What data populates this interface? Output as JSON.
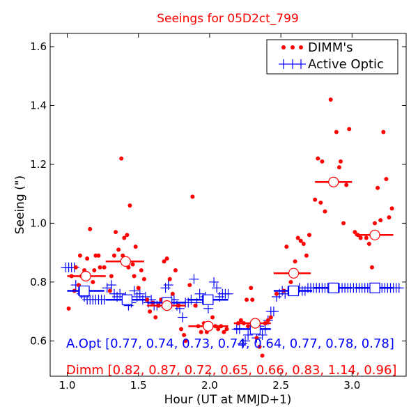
{
  "chart_data": {
    "type": "scatter",
    "title": "Seeings for 05D2ct_799",
    "xlabel": "Hour (UT at MMJD+1)",
    "ylabel": "Seeing (\")",
    "xlim": [
      0.88,
      3.38
    ],
    "ylim": [
      0.48,
      1.645
    ],
    "xticks": [
      "1.0",
      "1.5",
      "2.0",
      "2.5",
      "3.0"
    ],
    "xtick_values": [
      1.0,
      1.5,
      2.0,
      2.5,
      3.0
    ],
    "yticks": [
      "0.6",
      "0.8",
      "1.0",
      "1.2",
      "1.4",
      "1.6"
    ],
    "ytick_values": [
      0.6,
      0.8,
      1.0,
      1.2,
      1.4,
      1.6
    ],
    "grid": false,
    "legend_position": "top-right",
    "colors": {
      "dimm": "#ff0000",
      "aopt": "#0000ff"
    },
    "series": [
      {
        "name": "DIMM's",
        "marker": "dot",
        "color": "#ff0000",
        "points": [
          [
            1.01,
            0.71
          ],
          [
            1.03,
            0.82
          ],
          [
            1.05,
            0.77
          ],
          [
            1.06,
            0.85
          ],
          [
            1.08,
            0.79
          ],
          [
            1.09,
            0.89
          ],
          [
            1.1,
            0.82
          ],
          [
            1.12,
            0.84
          ],
          [
            1.13,
            0.78
          ],
          [
            1.14,
            0.88
          ],
          [
            1.16,
            0.98
          ],
          [
            1.18,
            0.8
          ],
          [
            1.19,
            0.84
          ],
          [
            1.2,
            0.89
          ],
          [
            1.22,
            0.89
          ],
          [
            1.23,
            0.85
          ],
          [
            1.26,
            0.85
          ],
          [
            1.3,
            0.77
          ],
          [
            1.31,
            0.82
          ],
          [
            1.33,
            0.89
          ],
          [
            1.34,
            0.97
          ],
          [
            1.36,
            0.91
          ],
          [
            1.38,
            1.22
          ],
          [
            1.39,
            0.89
          ],
          [
            1.4,
            0.95
          ],
          [
            1.42,
            0.96
          ],
          [
            1.43,
            0.85
          ],
          [
            1.44,
            1.06
          ],
          [
            1.46,
            0.86
          ],
          [
            1.47,
            0.82
          ],
          [
            1.48,
            0.92
          ],
          [
            1.5,
            0.78
          ],
          [
            1.52,
            0.84
          ],
          [
            1.54,
            0.81
          ],
          [
            1.56,
            0.74
          ],
          [
            1.58,
            0.7
          ],
          [
            1.6,
            0.73
          ],
          [
            1.62,
            0.68
          ],
          [
            1.64,
            0.72
          ],
          [
            1.66,
            0.74
          ],
          [
            1.68,
            0.87
          ],
          [
            1.7,
            0.88
          ],
          [
            1.72,
            0.81
          ],
          [
            1.74,
            0.76
          ],
          [
            1.76,
            0.84
          ],
          [
            1.78,
            0.72
          ],
          [
            1.8,
            0.64
          ],
          [
            1.82,
            0.62
          ],
          [
            1.83,
            0.6
          ],
          [
            1.86,
            0.79
          ],
          [
            1.88,
            1.09
          ],
          [
            1.9,
            0.72
          ],
          [
            1.92,
            0.65
          ],
          [
            1.94,
            0.63
          ],
          [
            1.96,
            0.66
          ],
          [
            1.98,
            0.63
          ],
          [
            2.0,
            0.64
          ],
          [
            2.02,
            0.68
          ],
          [
            2.04,
            0.65
          ],
          [
            2.06,
            0.64
          ],
          [
            2.08,
            0.65
          ],
          [
            2.1,
            0.63
          ],
          [
            2.12,
            0.64
          ],
          [
            2.2,
            0.66
          ],
          [
            2.22,
            0.67
          ],
          [
            2.24,
            0.66
          ],
          [
            2.26,
            0.74
          ],
          [
            2.27,
            0.65
          ],
          [
            2.29,
            0.78
          ],
          [
            2.3,
            0.74
          ],
          [
            2.31,
            0.64
          ],
          [
            2.33,
            0.61
          ],
          [
            2.35,
            0.58
          ],
          [
            2.37,
            0.55
          ],
          [
            2.39,
            0.66
          ],
          [
            2.41,
            0.67
          ],
          [
            2.43,
            0.68
          ],
          [
            2.47,
            0.76
          ],
          [
            2.52,
            0.77
          ],
          [
            2.54,
            0.92
          ],
          [
            2.57,
            0.8
          ],
          [
            2.6,
            0.87
          ],
          [
            2.62,
            0.95
          ],
          [
            2.64,
            0.94
          ],
          [
            2.66,
            0.93
          ],
          [
            2.68,
            0.89
          ],
          [
            2.7,
            0.96
          ],
          [
            2.74,
            1.08
          ],
          [
            2.76,
            1.22
          ],
          [
            2.78,
            1.07
          ],
          [
            2.79,
            1.21
          ],
          [
            2.81,
            1.04
          ],
          [
            2.85,
            1.42
          ],
          [
            2.88,
            1.15
          ],
          [
            2.89,
            1.31
          ],
          [
            2.91,
            1.19
          ],
          [
            2.92,
            1.21
          ],
          [
            2.94,
            1.0
          ],
          [
            2.96,
            1.13
          ],
          [
            2.98,
            1.32
          ],
          [
            3.02,
            0.97
          ],
          [
            3.04,
            0.96
          ],
          [
            3.06,
            0.95
          ],
          [
            3.1,
            0.95
          ],
          [
            3.12,
            0.93
          ],
          [
            3.14,
            0.85
          ],
          [
            3.16,
            1.0
          ],
          [
            3.18,
            1.12
          ],
          [
            3.2,
            1.01
          ],
          [
            3.22,
            1.31
          ],
          [
            3.24,
            1.15
          ],
          [
            3.26,
            1.02
          ],
          [
            3.28,
            1.05
          ]
        ]
      },
      {
        "name": "Active Optic",
        "marker": "plus",
        "color": "#0000ff",
        "points": [
          [
            0.99,
            0.85
          ],
          [
            1.01,
            0.85
          ],
          [
            1.03,
            0.85
          ],
          [
            1.05,
            0.85
          ],
          [
            1.06,
            0.79
          ],
          [
            1.08,
            0.77
          ],
          [
            1.1,
            0.76
          ],
          [
            1.12,
            0.75
          ],
          [
            1.14,
            0.74
          ],
          [
            1.16,
            0.74
          ],
          [
            1.18,
            0.74
          ],
          [
            1.2,
            0.74
          ],
          [
            1.22,
            0.74
          ],
          [
            1.24,
            0.74
          ],
          [
            1.26,
            0.74
          ],
          [
            1.28,
            0.78
          ],
          [
            1.31,
            0.79
          ],
          [
            1.33,
            0.76
          ],
          [
            1.35,
            0.75
          ],
          [
            1.37,
            0.76
          ],
          [
            1.39,
            0.74
          ],
          [
            1.41,
            0.75
          ],
          [
            1.43,
            0.72
          ],
          [
            1.45,
            0.73
          ],
          [
            1.47,
            0.77
          ],
          [
            1.49,
            0.75
          ],
          [
            1.51,
            0.76
          ],
          [
            1.53,
            0.74
          ],
          [
            1.55,
            0.75
          ],
          [
            1.57,
            0.73
          ],
          [
            1.59,
            0.74
          ],
          [
            1.61,
            0.72
          ],
          [
            1.63,
            0.72
          ],
          [
            1.65,
            0.73
          ],
          [
            1.67,
            0.73
          ],
          [
            1.69,
            0.78
          ],
          [
            1.71,
            0.79
          ],
          [
            1.73,
            0.74
          ],
          [
            1.75,
            0.74
          ],
          [
            1.77,
            0.72
          ],
          [
            1.79,
            0.71
          ],
          [
            1.81,
            0.68
          ],
          [
            1.83,
            0.73
          ],
          [
            1.85,
            0.73
          ],
          [
            1.87,
            0.74
          ],
          [
            1.89,
            0.81
          ],
          [
            1.91,
            0.73
          ],
          [
            1.93,
            0.76
          ],
          [
            1.95,
            0.74
          ],
          [
            1.97,
            0.75
          ],
          [
            1.99,
            0.71
          ],
          [
            2.01,
            0.74
          ],
          [
            2.03,
            0.8
          ],
          [
            2.05,
            0.78
          ],
          [
            2.07,
            0.75
          ],
          [
            2.09,
            0.76
          ],
          [
            2.11,
            0.76
          ],
          [
            2.13,
            0.76
          ],
          [
            2.19,
            0.64
          ],
          [
            2.21,
            0.64
          ],
          [
            2.23,
            0.59
          ],
          [
            2.25,
            0.6
          ],
          [
            2.27,
            0.62
          ],
          [
            2.29,
            0.65
          ],
          [
            2.31,
            0.64
          ],
          [
            2.33,
            0.61
          ],
          [
            2.35,
            0.65
          ],
          [
            2.37,
            0.62
          ],
          [
            2.39,
            0.64
          ],
          [
            2.41,
            0.67
          ],
          [
            2.43,
            0.7
          ],
          [
            2.45,
            0.7
          ],
          [
            2.47,
            0.75
          ],
          [
            2.49,
            0.76
          ],
          [
            2.51,
            0.77
          ],
          [
            2.53,
            0.76
          ],
          [
            2.55,
            0.77
          ],
          [
            2.57,
            0.77
          ],
          [
            2.59,
            0.77
          ],
          [
            2.61,
            0.77
          ],
          [
            2.63,
            0.78
          ],
          [
            2.65,
            0.77
          ],
          [
            2.67,
            0.77
          ],
          [
            2.69,
            0.78
          ],
          [
            2.71,
            0.78
          ],
          [
            2.73,
            0.78
          ],
          [
            2.75,
            0.78
          ],
          [
            2.77,
            0.78
          ],
          [
            2.79,
            0.78
          ],
          [
            2.81,
            0.78
          ],
          [
            2.83,
            0.78
          ],
          [
            2.85,
            0.78
          ],
          [
            2.87,
            0.78
          ],
          [
            2.89,
            0.78
          ],
          [
            2.91,
            0.78
          ],
          [
            2.93,
            0.78
          ],
          [
            2.95,
            0.78
          ],
          [
            2.97,
            0.78
          ],
          [
            2.99,
            0.78
          ],
          [
            3.01,
            0.78
          ],
          [
            3.03,
            0.78
          ],
          [
            3.05,
            0.78
          ],
          [
            3.07,
            0.78
          ],
          [
            3.09,
            0.78
          ],
          [
            3.11,
            0.78
          ],
          [
            3.13,
            0.78
          ],
          [
            3.15,
            0.78
          ],
          [
            3.17,
            0.78
          ],
          [
            3.19,
            0.78
          ],
          [
            3.21,
            0.78
          ],
          [
            3.23,
            0.78
          ],
          [
            3.25,
            0.78
          ],
          [
            3.27,
            0.78
          ],
          [
            3.29,
            0.78
          ],
          [
            3.31,
            0.78
          ],
          [
            3.33,
            0.78
          ]
        ]
      }
    ],
    "bin_means": {
      "dimm": [
        {
          "x0": 1.0,
          "x1": 1.27,
          "xc": 1.13,
          "y": 0.82
        },
        {
          "x0": 1.27,
          "x1": 1.54,
          "xc": 1.41,
          "y": 0.87
        },
        {
          "x0": 1.56,
          "x1": 1.83,
          "xc": 1.7,
          "y": 0.72
        },
        {
          "x0": 1.85,
          "x1": 2.13,
          "xc": 1.99,
          "y": 0.65
        },
        {
          "x0": 2.17,
          "x1": 2.43,
          "xc": 2.32,
          "y": 0.66
        },
        {
          "x0": 2.45,
          "x1": 2.71,
          "xc": 2.59,
          "y": 0.83
        },
        {
          "x0": 2.74,
          "x1": 3.0,
          "xc": 2.87,
          "y": 1.14
        },
        {
          "x0": 3.02,
          "x1": 3.29,
          "xc": 3.16,
          "y": 0.96
        }
      ],
      "aopt": [
        {
          "x0": 1.0,
          "x1": 1.26,
          "xc": 1.12,
          "y": 0.77
        },
        {
          "x0": 1.27,
          "x1": 1.55,
          "xc": 1.42,
          "y": 0.74
        },
        {
          "x0": 1.56,
          "x1": 1.83,
          "xc": 1.7,
          "y": 0.73
        },
        {
          "x0": 1.85,
          "x1": 2.13,
          "xc": 1.99,
          "y": 0.74
        },
        {
          "x0": 2.17,
          "x1": 2.43,
          "xc": 2.32,
          "y": 0.64
        },
        {
          "x0": 2.45,
          "x1": 2.72,
          "xc": 2.59,
          "y": 0.77
        },
        {
          "x0": 2.73,
          "x1": 3.0,
          "xc": 2.87,
          "y": 0.78
        },
        {
          "x0": 3.02,
          "x1": 3.29,
          "xc": 3.16,
          "y": 0.78
        }
      ]
    },
    "annotations": {
      "aopt": "A.Opt [0.77, 0.74, 0.73, 0.74, 0.64, 0.77, 0.78, 0.78]",
      "dimm": "Dimm [0.82, 0.87, 0.72, 0.65, 0.66, 0.83, 1.14, 0.96]"
    }
  }
}
